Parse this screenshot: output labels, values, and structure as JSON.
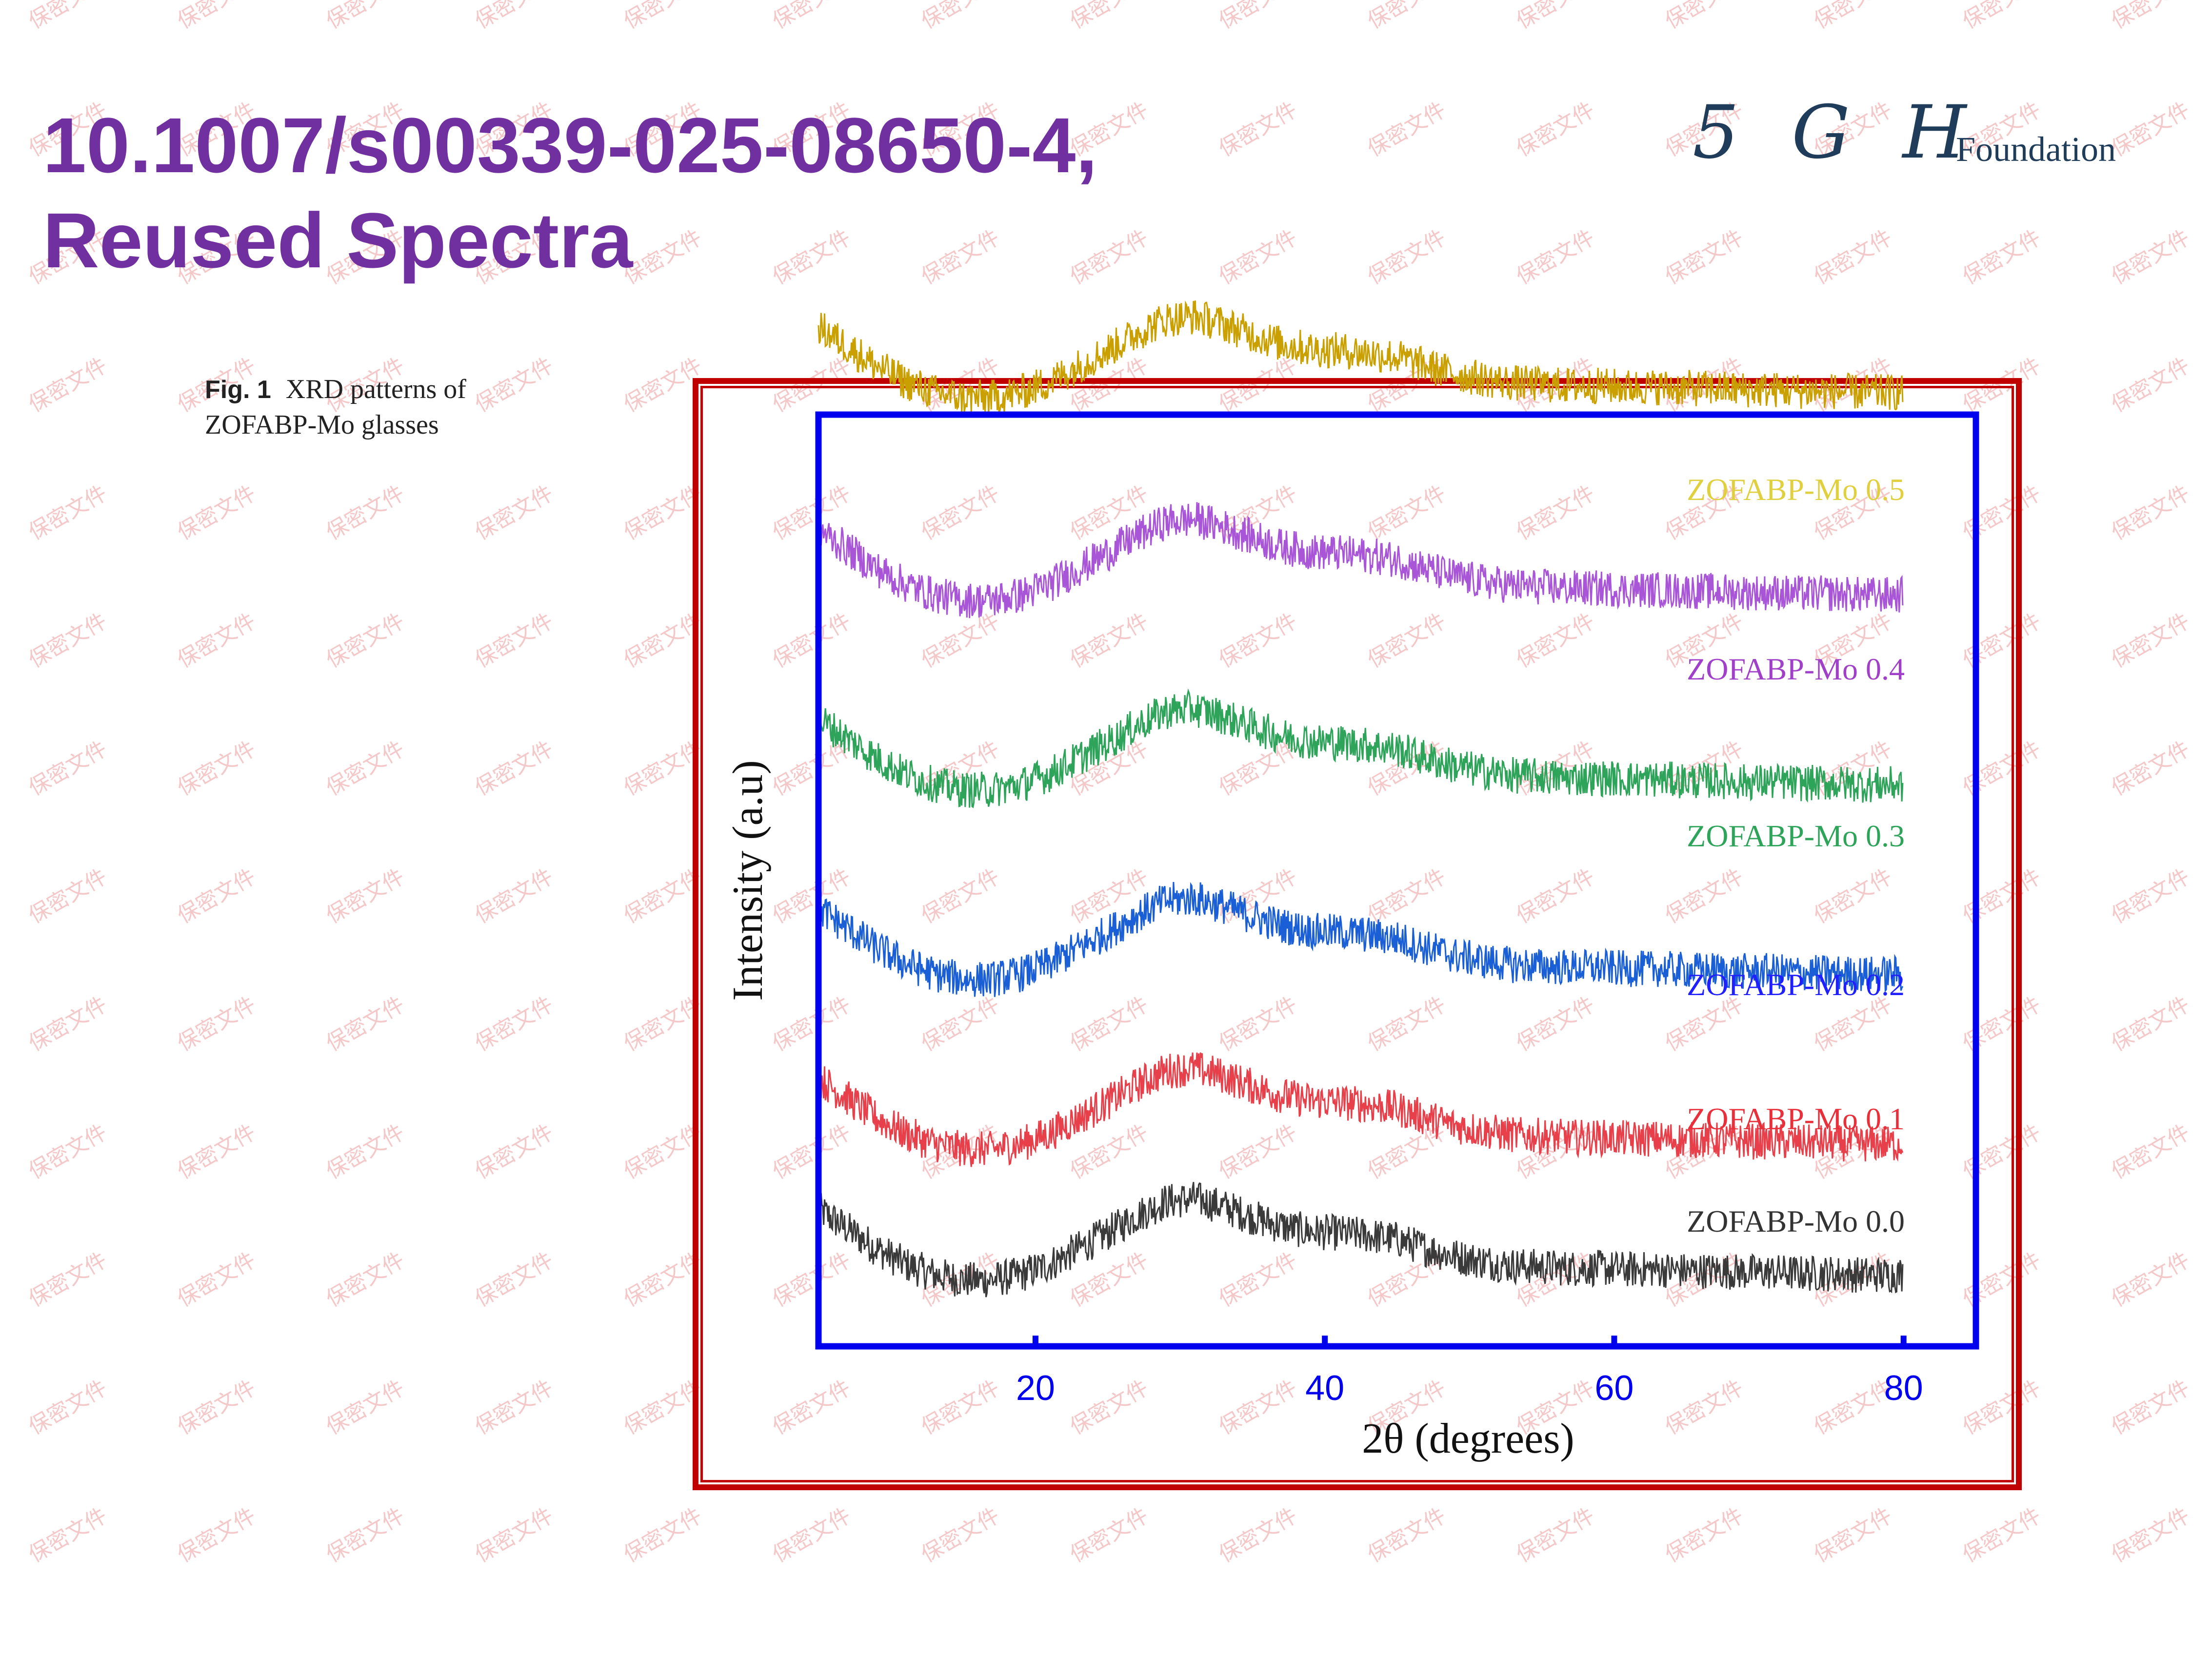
{
  "slide": {
    "title_line1": "10.1007/s00339-025-08650-4,",
    "title_line2": "Reused Spectra",
    "title_color": "#7030a0"
  },
  "logo": {
    "mark": "5 G H",
    "text": "Foundation",
    "color": "#1f3c5a"
  },
  "watermark": {
    "text": "保密文件",
    "color": "#f4c8c8"
  },
  "caption": {
    "label": "Fig. 1",
    "text": "XRD patterns of ZOFABP-Mo glasses"
  },
  "frame": {
    "outer_color": "#c00000",
    "axes_color": "#0000ee"
  },
  "chart_data": {
    "type": "line",
    "title": "",
    "xlabel": "2θ (degrees)",
    "ylabel": "Intensity (a.u)",
    "xlim": [
      5,
      85
    ],
    "xticks": [
      20,
      40,
      60,
      80
    ],
    "y_scale": "arbitrary units, stacked patterns (no y tick labels)",
    "grid": false,
    "legend": "series labels placed at right end of each pattern",
    "x": [
      5,
      7,
      9,
      11,
      13,
      15,
      17,
      19,
      21,
      23,
      25,
      27,
      29,
      31,
      33,
      35,
      37,
      39,
      41,
      43,
      45,
      47,
      49,
      51,
      53,
      55,
      57,
      59,
      61,
      63,
      65,
      67,
      69,
      71,
      73,
      75,
      77,
      79,
      80
    ],
    "series": [
      {
        "name": "ZOFABP-Mo 0.0",
        "color": "#3a3a3a",
        "offset": 0.0,
        "values": [
          0.6,
          0.45,
          0.3,
          0.18,
          0.1,
          0.06,
          0.06,
          0.1,
          0.18,
          0.3,
          0.42,
          0.55,
          0.66,
          0.68,
          0.62,
          0.54,
          0.47,
          0.43,
          0.42,
          0.4,
          0.37,
          0.3,
          0.24,
          0.2,
          0.17,
          0.16,
          0.15,
          0.15,
          0.14,
          0.14,
          0.13,
          0.13,
          0.12,
          0.12,
          0.11,
          0.11,
          0.1,
          0.1,
          0.1
        ]
      },
      {
        "name": "ZOFABP-Mo 0.1",
        "color": "#e8404a",
        "offset": 1.0,
        "values": [
          0.6,
          0.45,
          0.3,
          0.18,
          0.1,
          0.06,
          0.06,
          0.1,
          0.18,
          0.3,
          0.42,
          0.55,
          0.66,
          0.68,
          0.62,
          0.54,
          0.47,
          0.43,
          0.42,
          0.4,
          0.37,
          0.3,
          0.24,
          0.2,
          0.17,
          0.16,
          0.15,
          0.15,
          0.14,
          0.14,
          0.13,
          0.13,
          0.12,
          0.12,
          0.11,
          0.11,
          0.1,
          0.1,
          0.1
        ]
      },
      {
        "name": "ZOFABP-Mo 0.2",
        "color": "#1a5fd6",
        "offset": 2.3,
        "values": [
          0.6,
          0.45,
          0.3,
          0.18,
          0.1,
          0.06,
          0.06,
          0.1,
          0.18,
          0.3,
          0.42,
          0.55,
          0.66,
          0.68,
          0.62,
          0.54,
          0.47,
          0.43,
          0.42,
          0.4,
          0.37,
          0.3,
          0.24,
          0.2,
          0.17,
          0.16,
          0.15,
          0.15,
          0.14,
          0.14,
          0.13,
          0.13,
          0.12,
          0.12,
          0.11,
          0.11,
          0.1,
          0.1,
          0.1
        ]
      },
      {
        "name": "ZOFABP-Mo 0.3",
        "color": "#2ea35a",
        "offset": 3.75,
        "values": [
          0.6,
          0.45,
          0.3,
          0.18,
          0.1,
          0.06,
          0.06,
          0.1,
          0.18,
          0.3,
          0.42,
          0.55,
          0.66,
          0.68,
          0.62,
          0.54,
          0.47,
          0.43,
          0.42,
          0.4,
          0.37,
          0.3,
          0.24,
          0.2,
          0.17,
          0.16,
          0.15,
          0.15,
          0.14,
          0.14,
          0.13,
          0.13,
          0.12,
          0.12,
          0.11,
          0.11,
          0.1,
          0.1,
          0.1
        ]
      },
      {
        "name": "ZOFABP-Mo 0.4",
        "color": "#a855d8",
        "offset": 5.2,
        "values": [
          0.6,
          0.45,
          0.3,
          0.18,
          0.1,
          0.06,
          0.06,
          0.1,
          0.18,
          0.3,
          0.42,
          0.55,
          0.66,
          0.68,
          0.62,
          0.54,
          0.47,
          0.43,
          0.42,
          0.4,
          0.37,
          0.3,
          0.24,
          0.2,
          0.17,
          0.16,
          0.15,
          0.15,
          0.14,
          0.14,
          0.13,
          0.13,
          0.12,
          0.12,
          0.11,
          0.11,
          0.1,
          0.1,
          0.1
        ]
      },
      {
        "name": "ZOFABP-Mo 0.5",
        "color": "#c9a000",
        "offset": 6.75,
        "values": [
          0.6,
          0.45,
          0.3,
          0.18,
          0.1,
          0.06,
          0.06,
          0.1,
          0.18,
          0.3,
          0.42,
          0.55,
          0.66,
          0.68,
          0.62,
          0.54,
          0.47,
          0.43,
          0.42,
          0.4,
          0.37,
          0.3,
          0.24,
          0.2,
          0.17,
          0.16,
          0.15,
          0.15,
          0.14,
          0.14,
          0.13,
          0.13,
          0.12,
          0.12,
          0.11,
          0.11,
          0.1,
          0.1,
          0.1
        ]
      }
    ],
    "label_colors": [
      "#333333",
      "#e8303a",
      "#2020ff",
      "#2ea35a",
      "#a040c8",
      "#e0d040"
    ]
  }
}
